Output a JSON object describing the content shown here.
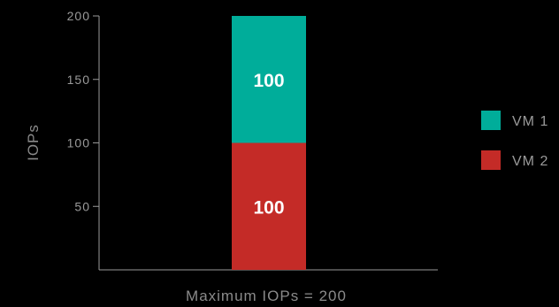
{
  "chart_data": {
    "type": "bar",
    "stacked": true,
    "categories": [
      ""
    ],
    "series": [
      {
        "name": "VM 2",
        "values": [
          100
        ],
        "color": "#c42b27"
      },
      {
        "name": "VM 1",
        "values": [
          100
        ],
        "color": "#00ad9a"
      }
    ],
    "data_labels": [
      "100",
      "100"
    ],
    "ylabel": "IOPs",
    "xlabel": "Maximum IOPs = 200",
    "yticks": [
      50,
      100,
      150,
      200
    ],
    "ytick_labels": [
      "50",
      "100",
      "150",
      "200"
    ],
    "ylim": [
      0,
      200
    ],
    "grid": false,
    "legend": {
      "placement": "right",
      "entries": [
        {
          "label": "VM 1",
          "color": "#00ad9a"
        },
        {
          "label": "VM 2",
          "color": "#c42b27"
        }
      ]
    },
    "axis_color": "#9a9a9a",
    "background": "#000000"
  }
}
